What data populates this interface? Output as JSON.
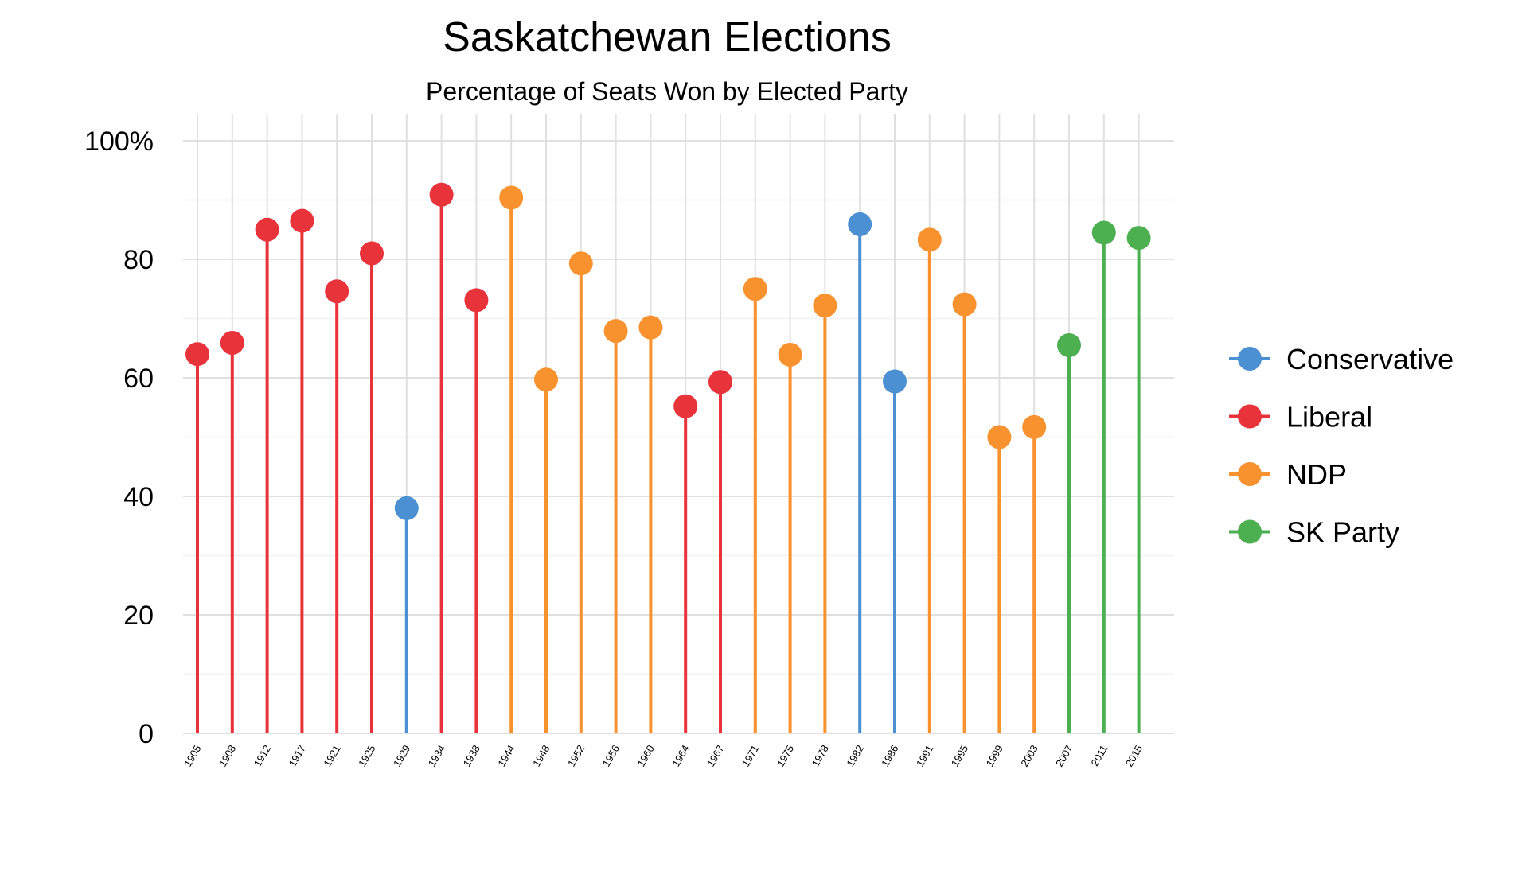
{
  "chart_data": {
    "type": "lollipop",
    "title": "Saskatchewan Elections",
    "subtitle": "Percentage of Seats Won by Elected Party",
    "xlabel": "",
    "ylabel": "",
    "ylim": [
      0,
      100
    ],
    "yticks": [
      0,
      20,
      40,
      60,
      80,
      100
    ],
    "ytick_labels": [
      "0",
      "20",
      "40",
      "60",
      "80",
      "100%"
    ],
    "grid": true,
    "legend_position": "right",
    "legend": [
      {
        "name": "Conservative",
        "color": "#4A90D2"
      },
      {
        "name": "Liberal",
        "color": "#E8333A"
      },
      {
        "name": "NDP",
        "color": "#F7922E"
      },
      {
        "name": "SK Party",
        "color": "#4CAF50"
      }
    ],
    "points": [
      {
        "year": "1905",
        "value": 64.0,
        "party": "Liberal"
      },
      {
        "year": "1908",
        "value": 65.9,
        "party": "Liberal"
      },
      {
        "year": "1912",
        "value": 85.0,
        "party": "Liberal"
      },
      {
        "year": "1917",
        "value": 86.5,
        "party": "Liberal"
      },
      {
        "year": "1921",
        "value": 74.6,
        "party": "Liberal"
      },
      {
        "year": "1925",
        "value": 81.0,
        "party": "Liberal"
      },
      {
        "year": "1929",
        "value": 38.0,
        "party": "Conservative"
      },
      {
        "year": "1934",
        "value": 90.9,
        "party": "Liberal"
      },
      {
        "year": "1938",
        "value": 73.1,
        "party": "Liberal"
      },
      {
        "year": "1944",
        "value": 90.4,
        "party": "NDP"
      },
      {
        "year": "1948",
        "value": 59.7,
        "party": "NDP"
      },
      {
        "year": "1952",
        "value": 79.3,
        "party": "NDP"
      },
      {
        "year": "1956",
        "value": 67.9,
        "party": "NDP"
      },
      {
        "year": "1960",
        "value": 68.5,
        "party": "NDP"
      },
      {
        "year": "1964",
        "value": 55.2,
        "party": "Liberal"
      },
      {
        "year": "1967",
        "value": 59.3,
        "party": "Liberal"
      },
      {
        "year": "1971",
        "value": 75.0,
        "party": "NDP"
      },
      {
        "year": "1975",
        "value": 63.9,
        "party": "NDP"
      },
      {
        "year": "1978",
        "value": 72.2,
        "party": "NDP"
      },
      {
        "year": "1982",
        "value": 85.9,
        "party": "Conservative"
      },
      {
        "year": "1986",
        "value": 59.4,
        "party": "Conservative"
      },
      {
        "year": "1991",
        "value": 83.3,
        "party": "NDP"
      },
      {
        "year": "1995",
        "value": 72.4,
        "party": "NDP"
      },
      {
        "year": "1999",
        "value": 50.0,
        "party": "NDP"
      },
      {
        "year": "2003",
        "value": 51.7,
        "party": "NDP"
      },
      {
        "year": "2007",
        "value": 65.5,
        "party": "SK Party"
      },
      {
        "year": "2011",
        "value": 84.5,
        "party": "SK Party"
      },
      {
        "year": "2015",
        "value": 83.6,
        "party": "SK Party"
      }
    ]
  }
}
